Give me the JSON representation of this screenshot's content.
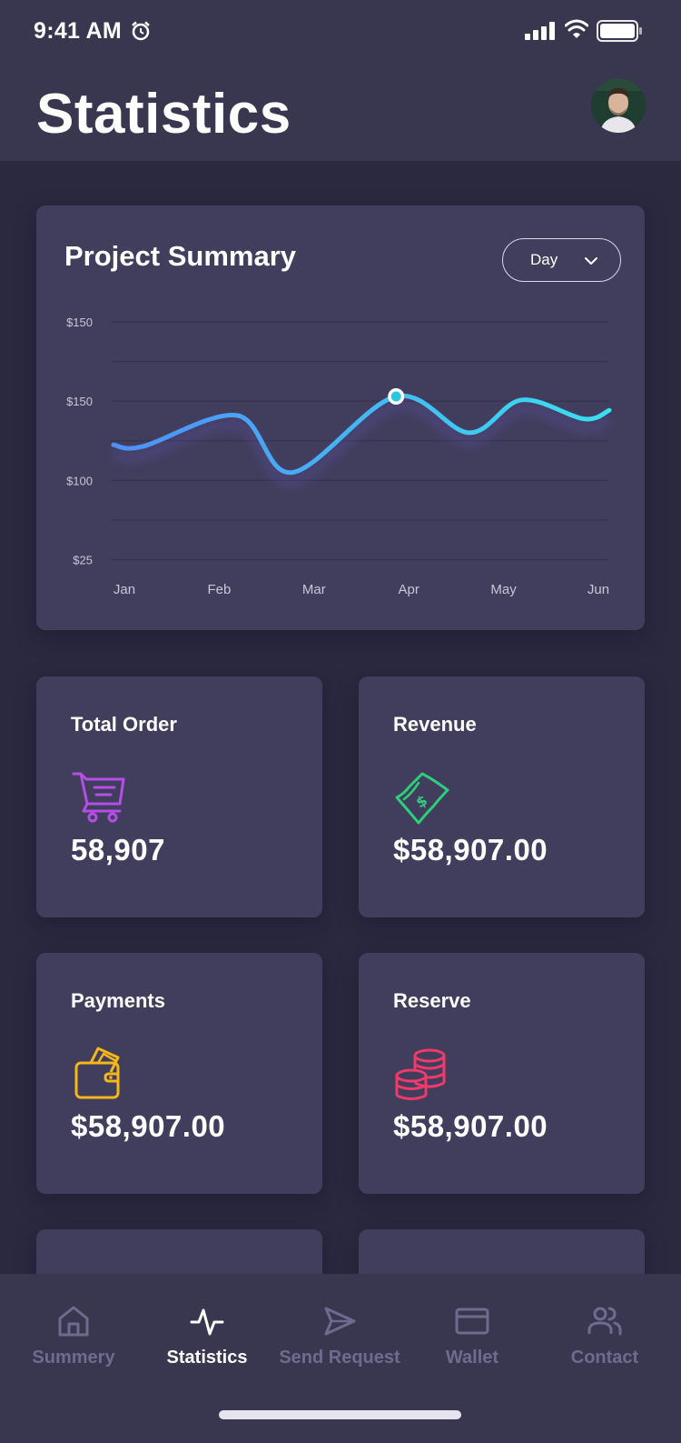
{
  "status_bar": {
    "time": "9:41 AM",
    "icons": [
      "alarm-icon",
      "signal-icon",
      "wifi-icon",
      "battery-icon"
    ]
  },
  "header": {
    "title": "Statistics",
    "avatar": "profile-avatar"
  },
  "summary": {
    "title": "Project Summary",
    "range_select": "Day",
    "chart_data": {
      "type": "line",
      "title": "Project Summary",
      "categories": [
        "Jan",
        "Feb",
        "Mar",
        "Apr",
        "May",
        "Jun"
      ],
      "y_tick_labels": [
        "$150",
        "$150",
        "$100",
        "$25"
      ],
      "series": [
        {
          "values": [
            {
              "x": "Jan",
              "y": 122
            },
            {
              "x": "Jan",
              "y": 121
            },
            {
              "x": "Feb",
              "y": 139
            },
            {
              "x": "Mar",
              "y": 106
            },
            {
              "x": "Apr",
              "y": 150
            },
            {
              "x": "May",
              "y": 129
            },
            {
              "x": "May",
              "y": 148
            },
            {
              "x": "Jun",
              "y": 137
            },
            {
              "x": "Jun",
              "y": 142
            }
          ]
        }
      ],
      "highlighted_point": {
        "x": "Apr",
        "y": 150
      },
      "grid": true,
      "line_gradient": [
        "#4f8ef7",
        "#39e0f0"
      ]
    }
  },
  "stats": [
    {
      "label": "Total Order",
      "value": "58,907",
      "icon": "cart-icon",
      "color": "#b44ee6"
    },
    {
      "label": "Revenue",
      "value": "$58,907.00",
      "icon": "money-icon",
      "color": "#2ecf7a"
    },
    {
      "label": "Payments",
      "value": "$58,907.00",
      "icon": "wallet-icon",
      "color": "#f5b818"
    },
    {
      "label": "Reserve",
      "value": "$58,907.00",
      "icon": "coins-icon",
      "color": "#ef3a6b"
    }
  ],
  "nav": {
    "items": [
      {
        "label": "Summery",
        "icon": "home-icon",
        "active": false
      },
      {
        "label": "Statistics",
        "icon": "activity-icon",
        "active": true
      },
      {
        "label": "Send Request",
        "icon": "send-icon",
        "active": false
      },
      {
        "label": "Wallet",
        "icon": "card-icon",
        "active": false
      },
      {
        "label": "Contact",
        "icon": "users-icon",
        "active": false
      }
    ]
  },
  "colors": {
    "background": "#2b2940",
    "header": "#393650",
    "card": "#413d5c",
    "nav_inactive": "#6f6b8e"
  }
}
